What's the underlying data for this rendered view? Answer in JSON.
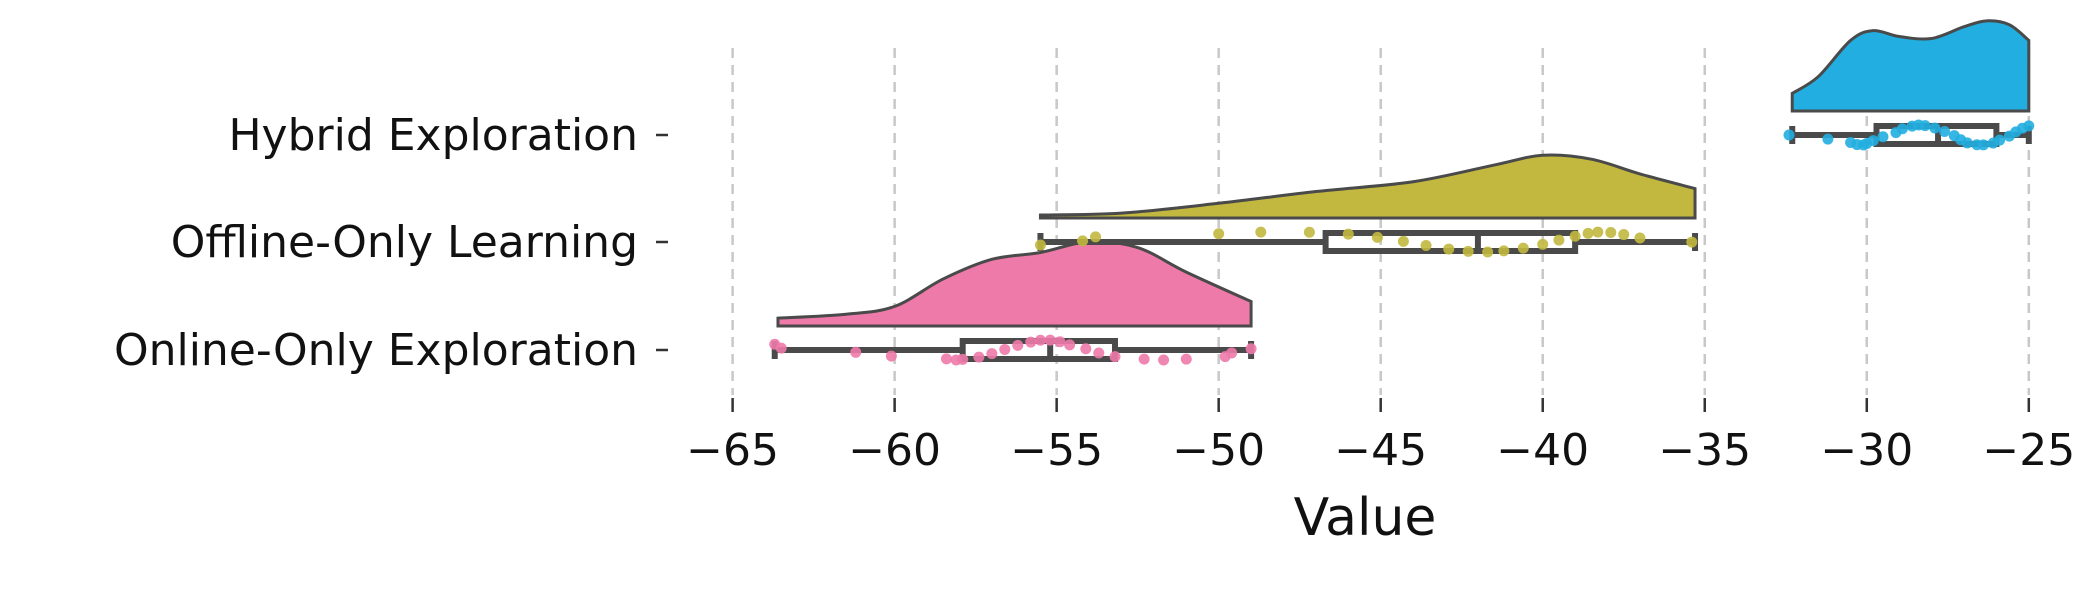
{
  "chart_data": {
    "type": "raincloud",
    "xlabel": "Value",
    "ylabel": "",
    "xlim": [
      -66.5,
      -24.5
    ],
    "x_ticks": [
      -65,
      -60,
      -55,
      -50,
      -45,
      -40,
      -35,
      -30,
      -25
    ],
    "x_tick_labels": [
      "−65",
      "−60",
      "−55",
      "−50",
      "−45",
      "−40",
      "−35",
      "−30",
      "−25"
    ],
    "grid": "vertical-dashed",
    "categories": [
      "Hybrid Exploration",
      "Offline-Only Learning",
      "Online-Only Exploration"
    ],
    "series": [
      {
        "name": "Hybrid Exploration",
        "color": "#22aee0",
        "box": {
          "min": -32.3,
          "q1": -29.7,
          "median": -27.8,
          "q3": -26.0,
          "max": -25.0
        },
        "density": [
          [
            -32.3,
            0.18
          ],
          [
            -31.5,
            0.35
          ],
          [
            -30.5,
            0.72
          ],
          [
            -29.8,
            0.82
          ],
          [
            -29.0,
            0.76
          ],
          [
            -28.0,
            0.74
          ],
          [
            -27.0,
            0.86
          ],
          [
            -26.3,
            0.92
          ],
          [
            -25.6,
            0.88
          ],
          [
            -25.0,
            0.72
          ]
        ],
        "points": [
          -32.4,
          -31.2,
          -30.5,
          -30.3,
          -30.1,
          -30.0,
          -29.8,
          -29.5,
          -29.1,
          -28.9,
          -28.6,
          -28.4,
          -28.2,
          -27.9,
          -27.6,
          -27.3,
          -27.1,
          -26.9,
          -26.6,
          -26.4,
          -26.1,
          -25.9,
          -25.6,
          -25.4,
          -25.2,
          -25.0
        ]
      },
      {
        "name": "Offline-Only Learning",
        "color": "#c2b83f",
        "box": {
          "min": -55.5,
          "q1": -46.7,
          "median": -42.0,
          "q3": -39.0,
          "max": -35.3
        },
        "density": [
          [
            -55.5,
            0.03
          ],
          [
            -53.0,
            0.05
          ],
          [
            -50.0,
            0.15
          ],
          [
            -47.0,
            0.27
          ],
          [
            -44.0,
            0.37
          ],
          [
            -41.5,
            0.54
          ],
          [
            -40.0,
            0.64
          ],
          [
            -38.5,
            0.6
          ],
          [
            -37.0,
            0.45
          ],
          [
            -35.3,
            0.3
          ]
        ],
        "points": [
          -55.5,
          -54.2,
          -53.8,
          -50.0,
          -48.7,
          -47.2,
          -46.0,
          -45.1,
          -44.3,
          -43.6,
          -42.9,
          -42.3,
          -41.7,
          -41.2,
          -40.6,
          -40.0,
          -39.5,
          -39.0,
          -38.6,
          -38.3,
          -37.9,
          -37.5,
          -37.0,
          -35.4
        ]
      },
      {
        "name": "Online-Only Exploration",
        "color": "#ee7aaa",
        "box": {
          "min": -63.7,
          "q1": -57.9,
          "median": -55.2,
          "q3": -53.2,
          "max": -49.0
        },
        "density": [
          [
            -63.6,
            0.08
          ],
          [
            -61.5,
            0.12
          ],
          [
            -60.0,
            0.2
          ],
          [
            -58.5,
            0.48
          ],
          [
            -57.0,
            0.68
          ],
          [
            -55.5,
            0.75
          ],
          [
            -54.0,
            0.86
          ],
          [
            -52.5,
            0.8
          ],
          [
            -51.0,
            0.55
          ],
          [
            -49.0,
            0.25
          ]
        ],
        "points": [
          -63.7,
          -63.5,
          -61.2,
          -60.1,
          -58.4,
          -58.1,
          -57.9,
          -57.4,
          -57.0,
          -56.6,
          -56.2,
          -55.8,
          -55.5,
          -55.2,
          -54.9,
          -54.6,
          -54.1,
          -53.7,
          -53.2,
          -52.3,
          -51.7,
          -51.0,
          -49.8,
          -49.6,
          -49.0
        ]
      }
    ]
  }
}
